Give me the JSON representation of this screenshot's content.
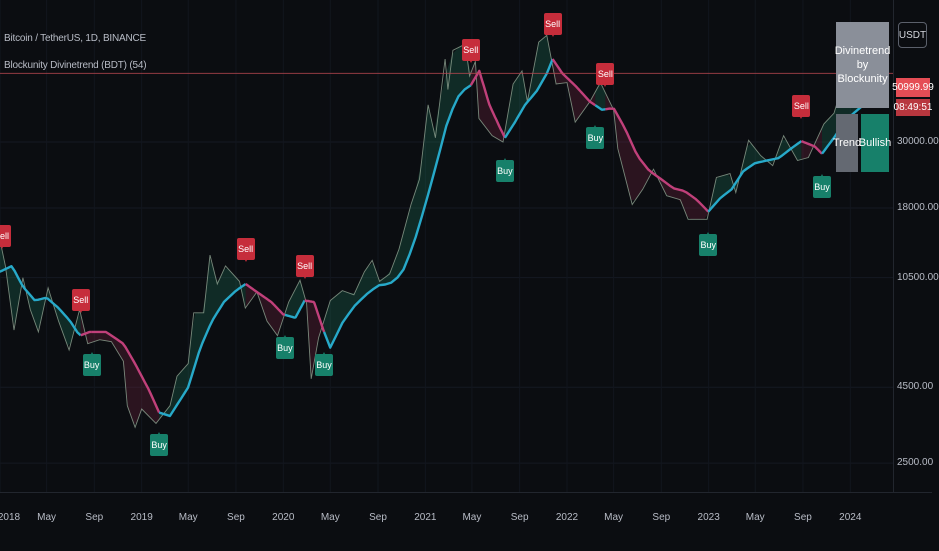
{
  "legend": {
    "symbol": "Bitcoin / TetherUS, 1D, BINANCE",
    "indicator": "Blockunity Divinetrend (BDT) (54)"
  },
  "axis": {
    "currency": "USDT",
    "last_price": "50999.99",
    "countdown": "08:49:51"
  },
  "info_panel": {
    "title": "Divinetrend by Blockunity",
    "trend_label": "Trend",
    "trend_value": "Bullish"
  },
  "colors": {
    "background": "#0b0d11",
    "sell": "#c62d3b",
    "buy": "#17806a",
    "bull_line": "#27a9c9",
    "bear_line": "#c0407a",
    "price_line": "#e54d55"
  },
  "chart_data": {
    "type": "line",
    "title": "",
    "yscale": "log",
    "ylim": [
      2000,
      90000
    ],
    "y_ticks": [
      {
        "value": 30000,
        "label": "30000.00"
      },
      {
        "value": 18000,
        "label": "18000.00"
      },
      {
        "value": 10500,
        "label": "10500.00"
      },
      {
        "value": 4500,
        "label": "4500.00"
      },
      {
        "value": 2500,
        "label": "2500.00"
      }
    ],
    "xlim": [
      "2018-01-01",
      "2024-04-20"
    ],
    "x_ticks": [
      {
        "date": "2018-01-01",
        "label": "2018"
      },
      {
        "date": "2018-05-01",
        "label": "May"
      },
      {
        "date": "2018-09-01",
        "label": "Sep"
      },
      {
        "date": "2019-01-01",
        "label": "2019"
      },
      {
        "date": "2019-05-01",
        "label": "May"
      },
      {
        "date": "2019-09-01",
        "label": "Sep"
      },
      {
        "date": "2020-01-01",
        "label": "2020"
      },
      {
        "date": "2020-05-01",
        "label": "May"
      },
      {
        "date": "2020-09-01",
        "label": "Sep"
      },
      {
        "date": "2021-01-01",
        "label": "2021"
      },
      {
        "date": "2021-05-01",
        "label": "May"
      },
      {
        "date": "2021-09-01",
        "label": "Sep"
      },
      {
        "date": "2022-01-01",
        "label": "2022"
      },
      {
        "date": "2022-05-01",
        "label": "May"
      },
      {
        "date": "2022-09-01",
        "label": "Sep"
      },
      {
        "date": "2023-01-01",
        "label": "2023"
      },
      {
        "date": "2023-05-01",
        "label": "May"
      },
      {
        "date": "2023-09-01",
        "label": "Sep"
      },
      {
        "date": "2024-01-01",
        "label": "2024"
      }
    ],
    "current_price": 50999.99,
    "price": [
      [
        "2018-01-01",
        14000
      ],
      [
        "2018-01-15",
        11500
      ],
      [
        "2018-02-06",
        7000
      ],
      [
        "2018-03-01",
        10500
      ],
      [
        "2018-03-20",
        8200
      ],
      [
        "2018-04-10",
        6900
      ],
      [
        "2018-05-05",
        9700
      ],
      [
        "2018-06-01",
        7500
      ],
      [
        "2018-06-28",
        6000
      ],
      [
        "2018-07-25",
        8200
      ],
      [
        "2018-08-15",
        6300
      ],
      [
        "2018-09-15",
        6500
      ],
      [
        "2018-10-15",
        6400
      ],
      [
        "2018-11-15",
        5500
      ],
      [
        "2018-11-25",
        3900
      ],
      [
        "2018-12-15",
        3300
      ],
      [
        "2019-01-01",
        3800
      ],
      [
        "2019-02-07",
        3400
      ],
      [
        "2019-03-15",
        3900
      ],
      [
        "2019-04-02",
        4900
      ],
      [
        "2019-05-01",
        5400
      ],
      [
        "2019-05-15",
        8000
      ],
      [
        "2019-06-10",
        8000
      ],
      [
        "2019-06-26",
        12500
      ],
      [
        "2019-07-15",
        10000
      ],
      [
        "2019-08-05",
        11500
      ],
      [
        "2019-09-10",
        10200
      ],
      [
        "2019-09-25",
        8300
      ],
      [
        "2019-10-25",
        9400
      ],
      [
        "2019-11-20",
        7500
      ],
      [
        "2019-12-17",
        6700
      ],
      [
        "2020-01-15",
        8700
      ],
      [
        "2020-02-13",
        10300
      ],
      [
        "2020-03-01",
        8600
      ],
      [
        "2020-03-13",
        4800
      ],
      [
        "2020-04-01",
        6600
      ],
      [
        "2020-05-01",
        8800
      ],
      [
        "2020-06-01",
        9500
      ],
      [
        "2020-07-01",
        9200
      ],
      [
        "2020-07-28",
        11000
      ],
      [
        "2020-08-17",
        12000
      ],
      [
        "2020-09-05",
        10200
      ],
      [
        "2020-10-01",
        10800
      ],
      [
        "2020-10-25",
        13100
      ],
      [
        "2020-11-25",
        18500
      ],
      [
        "2020-12-17",
        22500
      ],
      [
        "2021-01-08",
        40000
      ],
      [
        "2021-01-27",
        31000
      ],
      [
        "2021-02-21",
        57000
      ],
      [
        "2021-02-28",
        45000
      ],
      [
        "2021-03-13",
        61000
      ],
      [
        "2021-04-14",
        64000
      ],
      [
        "2021-04-25",
        50000
      ],
      [
        "2021-05-10",
        56000
      ],
      [
        "2021-05-19",
        36000
      ],
      [
        "2021-06-22",
        31500
      ],
      [
        "2021-07-20",
        30000
      ],
      [
        "2021-08-15",
        47000
      ],
      [
        "2021-09-07",
        52000
      ],
      [
        "2021-09-21",
        41000
      ],
      [
        "2021-10-20",
        65000
      ],
      [
        "2021-11-10",
        68500
      ],
      [
        "2021-12-04",
        47000
      ],
      [
        "2022-01-01",
        47500
      ],
      [
        "2022-01-22",
        35000
      ],
      [
        "2022-03-01",
        41000
      ],
      [
        "2022-03-28",
        47500
      ],
      [
        "2022-05-01",
        38500
      ],
      [
        "2022-05-12",
        28500
      ],
      [
        "2022-06-18",
        18500
      ],
      [
        "2022-07-15",
        20800
      ],
      [
        "2022-08-12",
        24300
      ],
      [
        "2022-09-15",
        19800
      ],
      [
        "2022-10-20",
        19200
      ],
      [
        "2022-11-09",
        16500
      ],
      [
        "2022-12-28",
        16500
      ],
      [
        "2023-01-21",
        22800
      ],
      [
        "2023-02-25",
        23500
      ],
      [
        "2023-03-12",
        20300
      ],
      [
        "2023-04-14",
        30400
      ],
      [
        "2023-05-15",
        27000
      ],
      [
        "2023-06-15",
        25000
      ],
      [
        "2023-07-13",
        31500
      ],
      [
        "2023-08-18",
        26000
      ],
      [
        "2023-09-15",
        26600
      ],
      [
        "2023-10-25",
        34500
      ],
      [
        "2023-11-20",
        37500
      ],
      [
        "2023-12-06",
        44000
      ],
      [
        "2024-01-11",
        46500
      ],
      [
        "2024-01-23",
        39000
      ],
      [
        "2024-02-09",
        47000
      ],
      [
        "2024-02-20",
        51000
      ]
    ],
    "trend_line": [
      [
        "2018-01-01",
        11000
      ],
      [
        "2018-02-01",
        11500
      ],
      [
        "2018-03-01",
        9800
      ],
      [
        "2018-04-01",
        8800
      ],
      [
        "2018-05-01",
        9000
      ],
      [
        "2018-06-01",
        8300
      ],
      [
        "2018-07-01",
        7500
      ],
      [
        "2018-07-25",
        6700
      ],
      [
        "2018-08-20",
        6900
      ],
      [
        "2018-10-01",
        6900
      ],
      [
        "2018-11-15",
        6300
      ],
      [
        "2018-12-15",
        5400
      ],
      [
        "2019-01-20",
        4400
      ],
      [
        "2019-02-15",
        3700
      ],
      [
        "2019-03-15",
        3600
      ],
      [
        "2019-05-01",
        4500
      ],
      [
        "2019-06-01",
        6100
      ],
      [
        "2019-07-01",
        7500
      ],
      [
        "2019-08-01",
        8700
      ],
      [
        "2019-09-01",
        9500
      ],
      [
        "2019-09-26",
        10000
      ],
      [
        "2019-10-20",
        9500
      ],
      [
        "2019-12-01",
        8700
      ],
      [
        "2020-01-01",
        7900
      ],
      [
        "2020-02-01",
        7700
      ],
      [
        "2020-02-25",
        8800
      ],
      [
        "2020-03-20",
        8700
      ],
      [
        "2020-04-15",
        6900
      ],
      [
        "2020-05-01",
        6100
      ],
      [
        "2020-06-01",
        7400
      ],
      [
        "2020-07-01",
        8400
      ],
      [
        "2020-08-01",
        9200
      ],
      [
        "2020-09-01",
        9900
      ],
      [
        "2020-10-01",
        10000
      ],
      [
        "2020-11-01",
        10800
      ],
      [
        "2020-12-01",
        13500
      ],
      [
        "2021-01-01",
        18500
      ],
      [
        "2021-02-01",
        26000
      ],
      [
        "2021-03-01",
        36000
      ],
      [
        "2021-04-01",
        44000
      ],
      [
        "2021-04-28",
        46500
      ],
      [
        "2021-05-20",
        52000
      ],
      [
        "2021-06-15",
        40000
      ],
      [
        "2021-07-10",
        34000
      ],
      [
        "2021-07-25",
        31000
      ],
      [
        "2021-08-20",
        35000
      ],
      [
        "2021-09-15",
        40000
      ],
      [
        "2021-10-15",
        44500
      ],
      [
        "2021-11-10",
        51000
      ],
      [
        "2021-11-25",
        57000
      ],
      [
        "2021-12-20",
        51000
      ],
      [
        "2022-01-25",
        46000
      ],
      [
        "2022-03-01",
        41000
      ],
      [
        "2022-04-01",
        38500
      ],
      [
        "2022-05-01",
        39000
      ],
      [
        "2022-06-01",
        33000
      ],
      [
        "2022-07-01",
        27000
      ],
      [
        "2022-08-01",
        24000
      ],
      [
        "2022-09-01",
        22500
      ],
      [
        "2022-10-01",
        21000
      ],
      [
        "2022-11-01",
        20500
      ],
      [
        "2022-12-01",
        19200
      ],
      [
        "2022-12-31",
        17500
      ],
      [
        "2023-02-01",
        19500
      ],
      [
        "2023-03-01",
        20800
      ],
      [
        "2023-04-01",
        24000
      ],
      [
        "2023-05-01",
        25500
      ],
      [
        "2023-06-01",
        26000
      ],
      [
        "2023-07-01",
        26500
      ],
      [
        "2023-08-01",
        28500
      ],
      [
        "2023-08-28",
        30200
      ],
      [
        "2023-10-01",
        29000
      ],
      [
        "2023-10-20",
        27400
      ],
      [
        "2023-11-20",
        31000
      ],
      [
        "2023-12-20",
        35500
      ],
      [
        "2024-01-20",
        38500
      ],
      [
        "2024-02-20",
        41500
      ]
    ],
    "signals": [
      {
        "date": "2018-01-05",
        "type": "sell",
        "label": "Sell"
      },
      {
        "date": "2018-07-28",
        "type": "sell",
        "label": "Sell"
      },
      {
        "date": "2018-08-25",
        "type": "buy",
        "label": "Buy"
      },
      {
        "date": "2019-02-15",
        "type": "buy",
        "label": "Buy"
      },
      {
        "date": "2019-09-26",
        "type": "sell",
        "label": "Sell"
      },
      {
        "date": "2020-01-05",
        "type": "buy",
        "label": "Buy"
      },
      {
        "date": "2020-02-25",
        "type": "sell",
        "label": "Sell"
      },
      {
        "date": "2020-04-15",
        "type": "buy",
        "label": "Buy"
      },
      {
        "date": "2021-04-28",
        "type": "sell",
        "label": "Sell"
      },
      {
        "date": "2021-07-25",
        "type": "buy",
        "label": "Buy"
      },
      {
        "date": "2021-11-25",
        "type": "sell",
        "label": "Sell"
      },
      {
        "date": "2022-03-15",
        "type": "buy",
        "label": "Buy"
      },
      {
        "date": "2022-04-10",
        "type": "sell",
        "label": "Sell"
      },
      {
        "date": "2022-12-31",
        "type": "buy",
        "label": "Buy"
      },
      {
        "date": "2023-08-28",
        "type": "sell",
        "label": "Sell"
      },
      {
        "date": "2023-10-20",
        "type": "buy",
        "label": "Buy"
      }
    ]
  }
}
